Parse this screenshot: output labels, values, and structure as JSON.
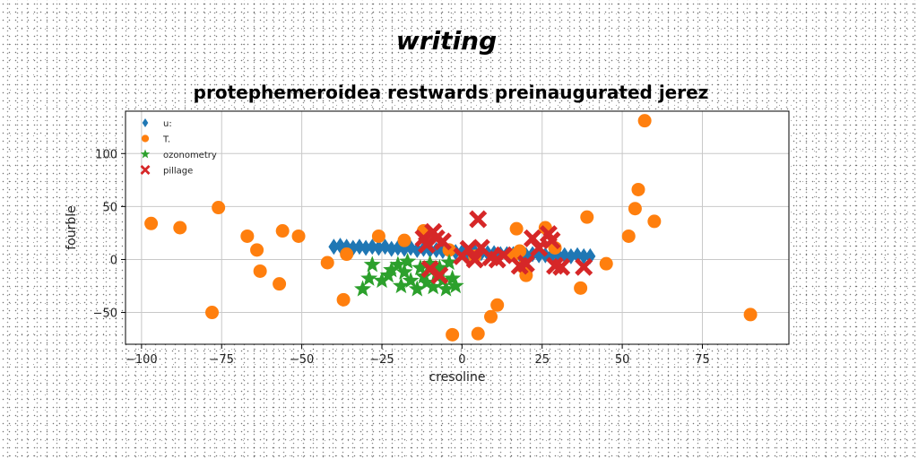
{
  "chart_data": {
    "type": "scatter",
    "suptitle": "writing",
    "title": "protephemeroidea restwards preinaugurated jerez",
    "xlabel": "cresoline",
    "ylabel": "fourble",
    "xlim": [
      -105,
      102
    ],
    "ylim": [
      -80,
      140
    ],
    "xticks": [
      -100,
      -75,
      -50,
      -25,
      0,
      25,
      50,
      75
    ],
    "yticks": [
      -50,
      0,
      50,
      100
    ],
    "grid": true,
    "legend_position": "top-left",
    "series": [
      {
        "name": "u:",
        "marker": "diamond",
        "color": "#1f77b4",
        "points": [
          [
            -40,
            12
          ],
          [
            -38,
            13
          ],
          [
            -36,
            12
          ],
          [
            -34,
            11
          ],
          [
            -32,
            12
          ],
          [
            -30,
            11
          ],
          [
            -28,
            12
          ],
          [
            -26,
            11
          ],
          [
            -24,
            12
          ],
          [
            -22,
            10
          ],
          [
            -20,
            11
          ],
          [
            -18,
            10
          ],
          [
            -16,
            11
          ],
          [
            -14,
            9
          ],
          [
            -12,
            10
          ],
          [
            -10,
            9
          ],
          [
            -8,
            9
          ],
          [
            -6,
            8
          ],
          [
            -4,
            8
          ],
          [
            -2,
            7
          ],
          [
            0,
            7
          ],
          [
            2,
            6
          ],
          [
            4,
            7
          ],
          [
            6,
            6
          ],
          [
            8,
            6
          ],
          [
            10,
            6
          ],
          [
            12,
            5
          ],
          [
            14,
            5
          ],
          [
            16,
            5
          ],
          [
            18,
            5
          ],
          [
            20,
            4
          ],
          [
            22,
            5
          ],
          [
            24,
            4
          ],
          [
            26,
            4
          ],
          [
            28,
            4
          ],
          [
            30,
            4
          ],
          [
            32,
            4
          ],
          [
            34,
            3
          ],
          [
            36,
            4
          ],
          [
            38,
            3
          ],
          [
            40,
            3
          ]
        ]
      },
      {
        "name": "T.",
        "marker": "circle",
        "color": "#ff7f0e",
        "points": [
          [
            -97,
            34
          ],
          [
            -88,
            30
          ],
          [
            -78,
            -50
          ],
          [
            -76,
            49
          ],
          [
            -67,
            22
          ],
          [
            -64,
            9
          ],
          [
            -63,
            -11
          ],
          [
            -57,
            -23
          ],
          [
            -56,
            27
          ],
          [
            -51,
            22
          ],
          [
            -42,
            -3
          ],
          [
            -37,
            -38
          ],
          [
            -36,
            5
          ],
          [
            -26,
            22
          ],
          [
            -18,
            18
          ],
          [
            -12,
            27
          ],
          [
            -4,
            9
          ],
          [
            -3,
            -71
          ],
          [
            4,
            3
          ],
          [
            5,
            -70
          ],
          [
            9,
            -54
          ],
          [
            11,
            -43
          ],
          [
            16,
            4
          ],
          [
            17,
            29
          ],
          [
            18,
            8
          ],
          [
            19,
            -7
          ],
          [
            20,
            -15
          ],
          [
            26,
            30
          ],
          [
            29,
            11
          ],
          [
            37,
            -27
          ],
          [
            39,
            40
          ],
          [
            45,
            -4
          ],
          [
            52,
            22
          ],
          [
            54,
            48
          ],
          [
            55,
            66
          ],
          [
            57,
            131
          ],
          [
            60,
            36
          ],
          [
            90,
            -52
          ]
        ]
      },
      {
        "name": "ozonometry",
        "marker": "star",
        "color": "#2ca02c",
        "points": [
          [
            -31,
            -28
          ],
          [
            -29,
            -18
          ],
          [
            -28,
            -5
          ],
          [
            -25,
            -20
          ],
          [
            -23,
            -15
          ],
          [
            -22,
            -10
          ],
          [
            -20,
            -5
          ],
          [
            -19,
            -25
          ],
          [
            -18,
            -12
          ],
          [
            -17,
            -2
          ],
          [
            -16,
            -20
          ],
          [
            -14,
            -28
          ],
          [
            -13,
            -8
          ],
          [
            -12,
            -16
          ],
          [
            -11,
            -22
          ],
          [
            -10,
            -4
          ],
          [
            -9,
            -26
          ],
          [
            -8,
            -14
          ],
          [
            -7,
            -8
          ],
          [
            -6,
            -20
          ],
          [
            -5,
            -28
          ],
          [
            -4,
            -3
          ],
          [
            -3,
            -18
          ],
          [
            -2,
            -25
          ]
        ]
      },
      {
        "name": "pillage",
        "marker": "x",
        "color": "#d62728",
        "points": [
          [
            -12,
            20
          ],
          [
            -11,
            14
          ],
          [
            -10,
            -9
          ],
          [
            -9,
            26
          ],
          [
            -8,
            20
          ],
          [
            -7,
            -15
          ],
          [
            -6,
            17
          ],
          [
            0,
            3
          ],
          [
            2,
            10
          ],
          [
            4,
            0
          ],
          [
            5,
            38
          ],
          [
            6,
            11
          ],
          [
            9,
            2
          ],
          [
            11,
            0
          ],
          [
            13,
            4
          ],
          [
            18,
            -6
          ],
          [
            20,
            -4
          ],
          [
            22,
            20
          ],
          [
            24,
            11
          ],
          [
            27,
            24
          ],
          [
            28,
            18
          ],
          [
            29,
            -6
          ],
          [
            31,
            -7
          ],
          [
            38,
            -7
          ]
        ]
      }
    ]
  }
}
